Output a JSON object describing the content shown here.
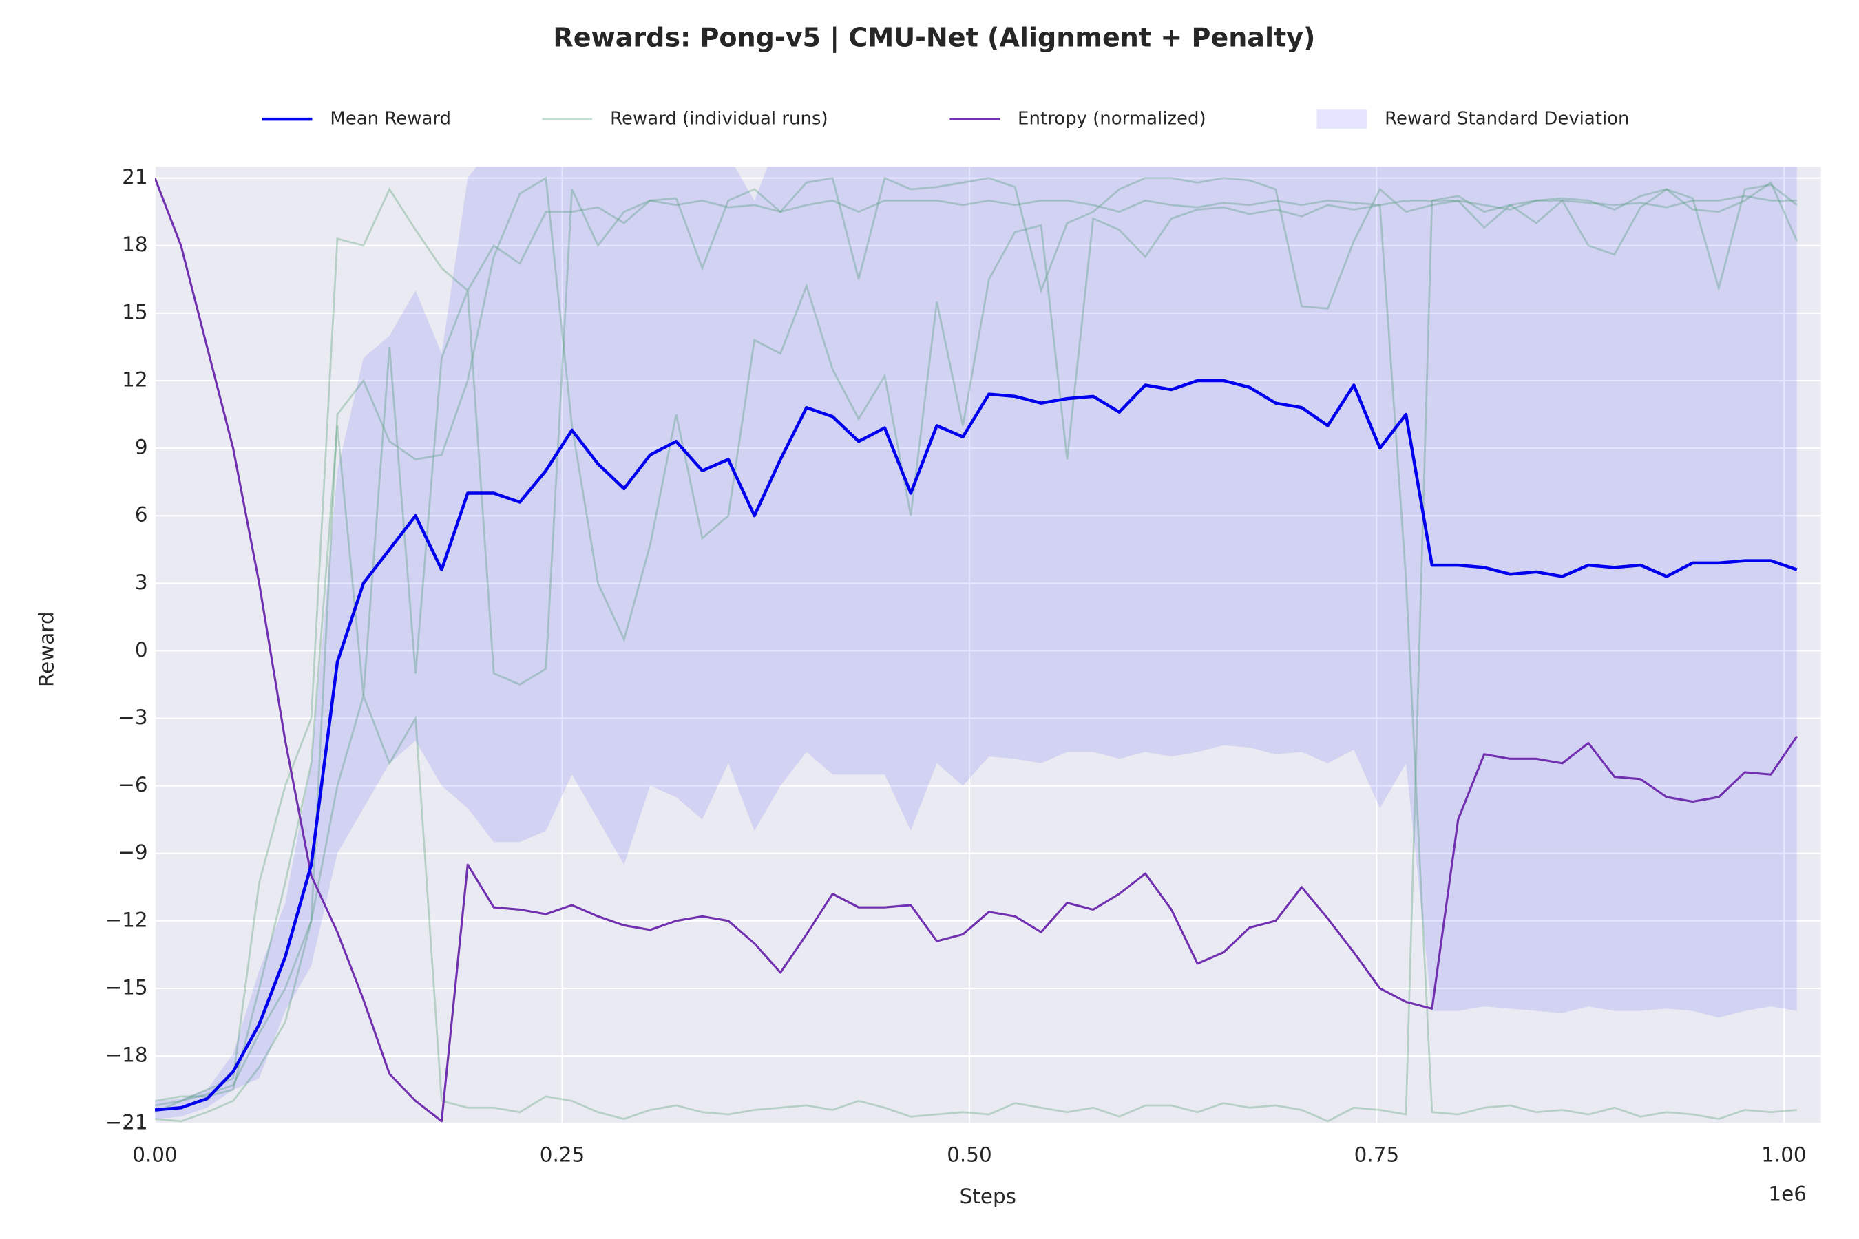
{
  "chart_data": {
    "type": "line",
    "title": "Rewards: Pong-v5 | CMU-Net (Alignment + Penalty)",
    "x_label": "Steps",
    "y_label": "Reward",
    "x_offset_label": "1e6",
    "xlim": [
      0,
      1022700
    ],
    "ylim": [
      -21,
      21.5
    ],
    "xticks": [
      {
        "value": 0,
        "label": "0.00"
      },
      {
        "value": 250000,
        "label": "0.25"
      },
      {
        "value": 500000,
        "label": "0.50"
      },
      {
        "value": 750000,
        "label": "0.75"
      },
      {
        "value": 1000000,
        "label": "1.00"
      }
    ],
    "yticks": [
      {
        "value": -21,
        "label": "−21"
      },
      {
        "value": -18,
        "label": "−18"
      },
      {
        "value": -15,
        "label": "−15"
      },
      {
        "value": -12,
        "label": "−12"
      },
      {
        "value": -9,
        "label": "−9"
      },
      {
        "value": -6,
        "label": "−6"
      },
      {
        "value": -3,
        "label": "−3"
      },
      0,
      3,
      6,
      9,
      12,
      15,
      18,
      21
    ],
    "grid": true,
    "legend": "top",
    "x": [
      0,
      16000,
      32000,
      48000,
      64000,
      80000,
      96000,
      112000,
      128000,
      144000,
      160000,
      176000,
      192000,
      208000,
      224000,
      240000,
      256000,
      272000,
      288000,
      304000,
      320000,
      336000,
      352000,
      368000,
      384000,
      400000,
      416000,
      432000,
      448000,
      464000,
      480000,
      496000,
      512000,
      528000,
      544000,
      560000,
      576000,
      592000,
      608000,
      624000,
      640000,
      656000,
      672000,
      688000,
      704000,
      720000,
      736000,
      752000,
      768000,
      784000,
      800000,
      816000,
      832000,
      848000,
      864000,
      880000,
      896000,
      912000,
      928000,
      944000,
      960000,
      976000,
      992000,
      1008000
    ],
    "series": [
      {
        "name": "Mean Reward",
        "color": "#0000ee",
        "values": [
          -20.4,
          -20.3,
          -19.9,
          -18.7,
          -16.6,
          -13.6,
          -9.5,
          -0.5,
          3.0,
          4.5,
          6.0,
          3.6,
          7.0,
          7.0,
          6.6,
          8.0,
          9.8,
          8.3,
          7.2,
          8.7,
          9.3,
          8.0,
          8.5,
          6.0,
          8.5,
          10.8,
          10.4,
          9.3,
          9.9,
          7.0,
          10.0,
          9.5,
          11.4,
          11.3,
          11.0,
          11.2,
          11.3,
          10.6,
          11.8,
          11.6,
          12.0,
          12.0,
          11.7,
          11.0,
          10.8,
          10.0,
          11.8,
          9.0,
          10.5,
          3.8,
          3.8,
          3.7,
          3.4,
          3.5,
          3.3,
          3.8,
          3.7,
          3.8,
          3.3,
          3.9,
          3.9,
          4.0,
          4.0,
          3.6
        ]
      },
      {
        "name": "Reward (individual runs)",
        "color": "#2e8b57",
        "runs": [
          [
            -20.5,
            -20,
            -19.5,
            -19,
            -10.3,
            -6,
            -3,
            18.3,
            18,
            20.5,
            18.7,
            17,
            16,
            18,
            17.2,
            19.5,
            19.5,
            19.7,
            19,
            20,
            19.8,
            20,
            19.7,
            19.8,
            19.5,
            19.8,
            20,
            19.5,
            20,
            20,
            20,
            19.8,
            20,
            19.8,
            20,
            20,
            19.8,
            19.5,
            20,
            19.8,
            19.7,
            19.9,
            19.8,
            20,
            19.8,
            20,
            19.9,
            19.8,
            20,
            20,
            20,
            19.8,
            19.6,
            20,
            20,
            19.9,
            19.8,
            19.9,
            19.7,
            20,
            20,
            20.2,
            20,
            20
          ],
          [
            -20.8,
            -20.9,
            -20.5,
            -20,
            -18.5,
            -16.5,
            -12,
            -6,
            -2,
            -5,
            -3,
            -20,
            -20.3,
            -20.3,
            -20.5,
            -19.8,
            -20,
            -20.5,
            -20.8,
            -20.4,
            -20.2,
            -20.5,
            -20.6,
            -20.4,
            -20.3,
            -20.2,
            -20.4,
            -20,
            -20.3,
            -20.7,
            -20.6,
            -20.5,
            -20.6,
            -20.1,
            -20.3,
            -20.5,
            -20.3,
            -20.7,
            -20.2,
            -20.2,
            -20.5,
            -20.1,
            -20.3,
            -20.2,
            -20.4,
            -20.9,
            -20.3,
            -20.4,
            -20.6,
            20,
            20.2,
            19.5,
            19.8,
            19,
            20,
            18,
            17.6,
            19.7,
            20.5,
            19.6,
            19.5,
            20,
            20.8,
            18.2
          ],
          [
            -20.2,
            -20,
            -19.7,
            -19.3,
            -17,
            -15,
            -12,
            10.5,
            12,
            9.3,
            8.5,
            8.7,
            12,
            17.5,
            20.3,
            21,
            10,
            3,
            0.5,
            4.7,
            10.5,
            5,
            6,
            13.8,
            13.2,
            16.2,
            12.5,
            10.3,
            12.2,
            6,
            15.5,
            10,
            16.5,
            18.6,
            18.9,
            8.5,
            19.2,
            18.7,
            17.5,
            19.2,
            19.6,
            19.7,
            19.4,
            19.6,
            19.3,
            19.8,
            19.6,
            19.8,
            3.2,
            -20.5,
            -20.6,
            -20.3,
            -20.2,
            -20.5,
            -20.4,
            -20.6,
            -20.3,
            -20.7,
            -20.5,
            -20.6,
            -20.8,
            -20.4,
            -20.5,
            -20.4
          ],
          [
            -20,
            -19.8,
            -19.8,
            -19.5,
            -15,
            -10.3,
            -5,
            10,
            -2,
            13.5,
            -1,
            13,
            16,
            -1,
            -1.5,
            -0.8,
            20.5,
            18,
            19.5,
            20,
            20.1,
            17,
            20,
            20.5,
            19.5,
            20.8,
            21,
            16.5,
            21,
            20.5,
            20.6,
            20.8,
            21,
            20.6,
            16,
            19,
            19.5,
            20.5,
            21,
            21,
            20.8,
            21,
            20.9,
            20.5,
            15.3,
            15.2,
            18.2,
            20.5,
            19.5,
            19.8,
            20,
            18.8,
            19.8,
            20,
            20.1,
            20,
            19.6,
            20.2,
            20.5,
            20.1,
            16.1,
            20.5,
            20.7,
            19.8
          ]
        ]
      },
      {
        "name": "Entropy (normalized)",
        "color": "#7030b0",
        "values": [
          21,
          18,
          13.5,
          9,
          3,
          -4,
          -10,
          -12.5,
          -15.5,
          -18.8,
          -20,
          -20.9,
          -9.5,
          -11.4,
          -11.5,
          -11.7,
          -11.3,
          -11.8,
          -12.2,
          -12.4,
          -12,
          -11.8,
          -12,
          -13,
          -14.3,
          -12.6,
          -10.8,
          -11.4,
          -11.4,
          -11.3,
          -12.9,
          -12.6,
          -11.6,
          -11.8,
          -12.5,
          -11.2,
          -11.5,
          -10.8,
          -9.9,
          -11.5,
          -13.9,
          -13.4,
          -12.3,
          -12,
          -10.5,
          -11.9,
          -13.4,
          -15,
          -15.6,
          -15.9,
          -7.5,
          -4.6,
          -4.8,
          -4.8,
          -5,
          -4.1,
          -5.6,
          -5.7,
          -6.5,
          -6.7,
          -6.5,
          -5.4,
          -5.5,
          -3.8
        ]
      },
      {
        "name": "Reward Standard Deviation",
        "color": "#0000ff",
        "lower": [
          -20.8,
          -20.7,
          -20.3,
          -19.5,
          -19,
          -16,
          -14,
          -9,
          -7,
          -5,
          -4,
          -6,
          -7,
          -8.5,
          -8.5,
          -8,
          -5.5,
          -7.5,
          -9.5,
          -6,
          -6.5,
          -7.5,
          -5,
          -8,
          -6,
          -4.5,
          -5.5,
          -5.5,
          -5.5,
          -8,
          -5,
          -6,
          -4.7,
          -4.8,
          -5,
          -4.5,
          -4.5,
          -4.8,
          -4.5,
          -4.7,
          -4.5,
          -4.2,
          -4.3,
          -4.6,
          -4.5,
          -5,
          -4.4,
          -7,
          -5,
          -16,
          -16,
          -15.8,
          -15.9,
          -16,
          -16.1,
          -15.8,
          -16,
          -16,
          -15.9,
          -16,
          -16.3,
          -16,
          -15.8,
          -16
        ],
        "upper": [
          -20,
          -19.9,
          -19.5,
          -17.9,
          -14.2,
          -11.2,
          -5,
          8,
          13,
          14,
          16,
          13.2,
          21,
          22.5,
          21.7,
          24,
          25.1,
          24.1,
          23.9,
          23.4,
          25.1,
          23.5,
          22,
          20,
          23,
          26.1,
          26.3,
          24.1,
          25.3,
          22,
          25,
          25,
          27.5,
          27.4,
          27,
          26.9,
          27.1,
          26,
          28.1,
          27.9,
          28.5,
          28.2,
          27.7,
          26.6,
          26.1,
          25,
          28,
          25,
          26,
          23.6,
          23.6,
          23.2,
          22.7,
          23,
          22.7,
          23.4,
          23.4,
          23.6,
          22.5,
          23.8,
          24.1,
          24,
          23.8,
          23.2
        ]
      }
    ]
  }
}
